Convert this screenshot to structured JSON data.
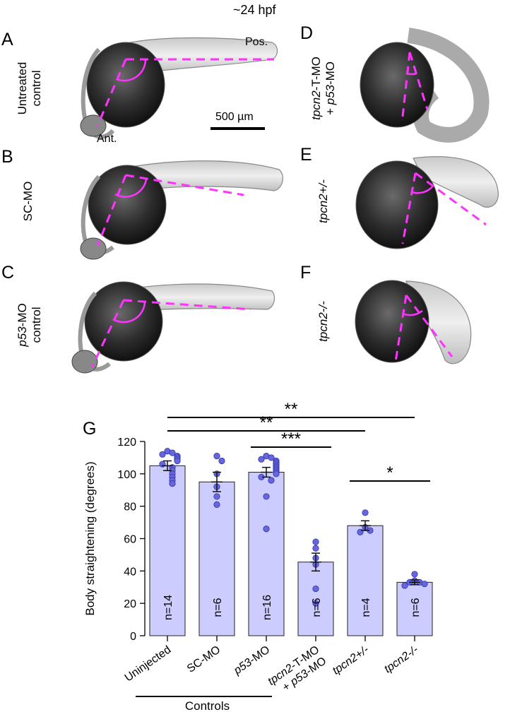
{
  "header": {
    "stage": "~24 hpf"
  },
  "panels": {
    "A": {
      "letter": "A",
      "label_line1": "Untreated",
      "label_line2": "control",
      "pos_label": "Pos.",
      "ant_label": "Ant.",
      "scale_bar": "500 µm"
    },
    "B": {
      "letter": "B",
      "label": "SC-MO"
    },
    "C": {
      "letter": "C",
      "label_italic": "p53",
      "label_rest": "-MO",
      "label_line2": "control"
    },
    "D": {
      "letter": "D",
      "label_line1_italic": "tpcn2",
      "label_line1_rest": "-T-MO",
      "label_line2_prefix": "+ ",
      "label_line2_italic": "p53",
      "label_line2_rest": "-MO"
    },
    "E": {
      "letter": "E",
      "label": "tpcn2+/-"
    },
    "F": {
      "letter": "F",
      "label": "tpcn2-/-"
    }
  },
  "colors": {
    "angle_line": "#ff33ff",
    "bar_fill": "#ccccff",
    "dot_fill": "#6666dd",
    "dot_stroke": "#3333aa"
  },
  "chart_data": {
    "type": "bar",
    "panel_letter": "G",
    "ylabel": "Body straightening (degrees)",
    "ylim": [
      0,
      120
    ],
    "yticks": [
      0,
      20,
      40,
      60,
      80,
      100,
      120
    ],
    "categories": [
      {
        "parts": [
          {
            "t": "Uninjected",
            "i": false
          }
        ]
      },
      {
        "parts": [
          {
            "t": "SC-MO",
            "i": false
          }
        ]
      },
      {
        "parts": [
          {
            "t": "p53",
            "i": true
          },
          {
            "t": "-MO",
            "i": false
          }
        ]
      },
      {
        "parts": [
          {
            "t": "tpcn2",
            "i": true
          },
          {
            "t": "-T-MO",
            "i": false
          }
        ],
        "parts2": [
          {
            "t": "+ ",
            "i": false
          },
          {
            "t": "p53",
            "i": true
          },
          {
            "t": "-MO",
            "i": false
          }
        ]
      },
      {
        "parts": [
          {
            "t": "tpcn2+/-",
            "i": true
          }
        ]
      },
      {
        "parts": [
          {
            "t": "tpcn2-/-",
            "i": true
          }
        ]
      }
    ],
    "values": [
      105,
      95,
      101,
      45.5,
      68,
      33
    ],
    "errors": [
      3,
      6,
      3,
      5.5,
      3,
      1.5
    ],
    "n_labels": [
      "n=14",
      "n=6",
      "n=16",
      "n=6",
      "n=4",
      "n=6"
    ],
    "points": [
      [
        114,
        113,
        112,
        111,
        110,
        109,
        108,
        106,
        104,
        102,
        100,
        98,
        96,
        94
      ],
      [
        111,
        108,
        100,
        92,
        86,
        81
      ],
      [
        111,
        110,
        109,
        108,
        107,
        106,
        105,
        104,
        103,
        102,
        101,
        100,
        98,
        96,
        86,
        66
      ],
      [
        58,
        54,
        48,
        44,
        29,
        20
      ],
      [
        76,
        67,
        65,
        64
      ],
      [
        38,
        34,
        33,
        33,
        32,
        31
      ]
    ],
    "significance": [
      {
        "from": 0,
        "to": 5,
        "label": "**"
      },
      {
        "from": 0,
        "to": 4,
        "label": "**"
      },
      {
        "from": 2,
        "to": 3,
        "label": "***"
      },
      {
        "from": 4,
        "to": 5,
        "label": "*"
      }
    ],
    "group_label": {
      "text": "Controls",
      "from": 0,
      "to": 2
    }
  }
}
